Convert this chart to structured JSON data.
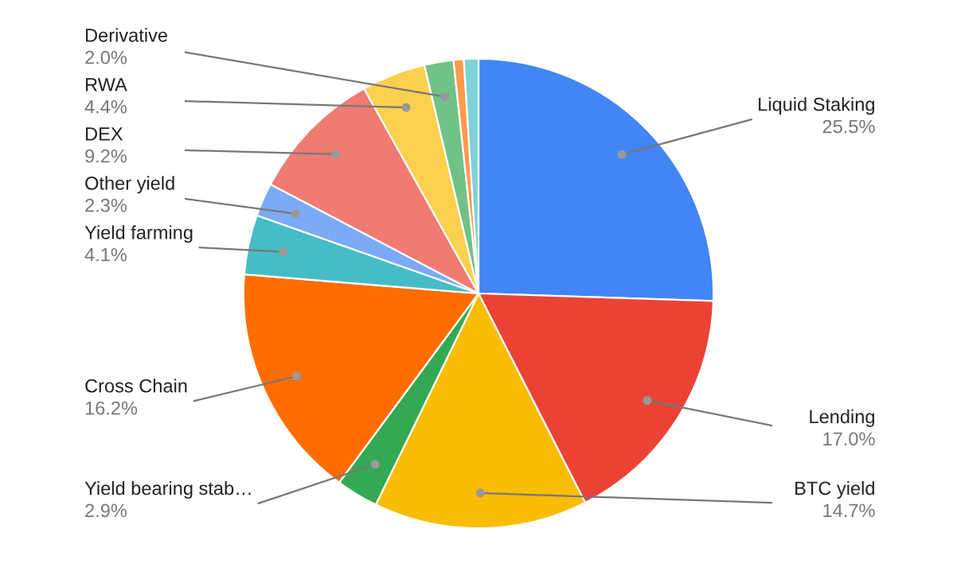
{
  "chart_data": {
    "type": "pie",
    "categories": [
      "Liquid Staking",
      "Lending",
      "BTC yield",
      "Yield bearing stab…",
      "Cross Chain",
      "Yield farming",
      "Other yield",
      "DEX",
      "RWA",
      "Derivative",
      null,
      null
    ],
    "values": [
      25.5,
      17.0,
      14.7,
      2.9,
      16.2,
      4.1,
      2.3,
      9.2,
      4.4,
      2.0,
      0.7,
      1.0
    ],
    "value_labels": [
      "25.5%",
      "17.0%",
      "14.7%",
      "2.9%",
      "16.2%",
      "4.1%",
      "2.3%",
      "9.2%",
      "4.4%",
      "2.0%",
      null,
      null
    ],
    "colors": [
      "#4285f4",
      "#ea4335",
      "#fbbc04",
      "#34a853",
      "#ff6d01",
      "#46bdc6",
      "#7baaf7",
      "#f07b72",
      "#fcd04f",
      "#71c287",
      "#ff994d",
      "#7ed1d7"
    ],
    "legend": false
  }
}
